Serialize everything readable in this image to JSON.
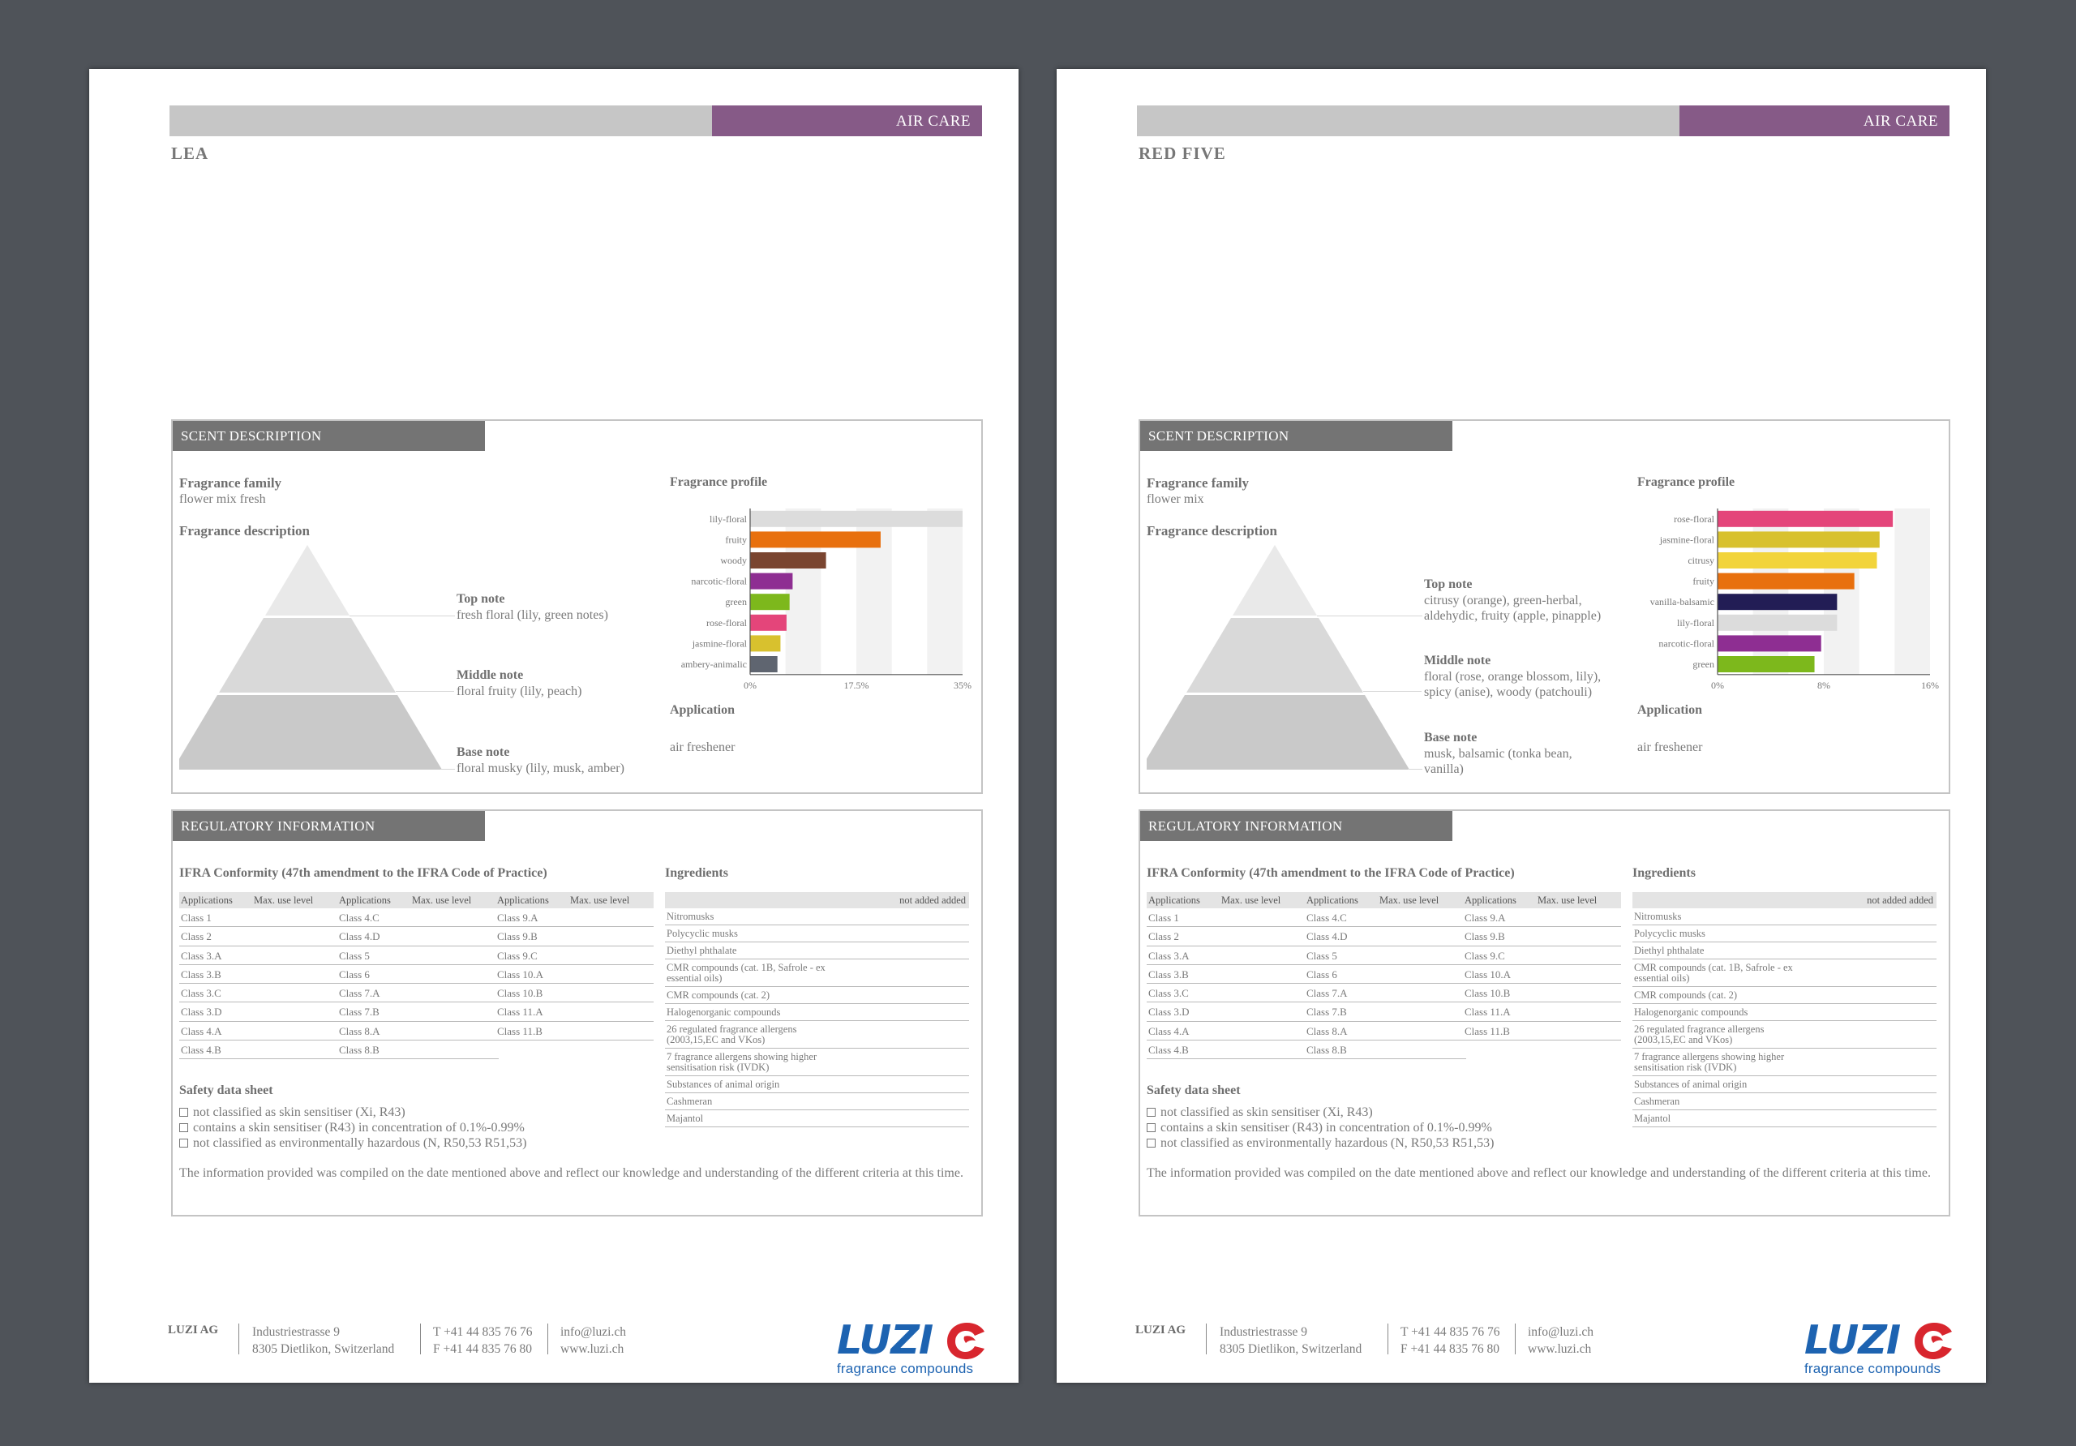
{
  "pages": [
    {
      "category": "AIR CARE",
      "name": "LEA",
      "scent": {
        "header": "SCENT DESCRIPTION",
        "family_label": "Fragrance family",
        "family": "flower mix fresh",
        "description_label": "Fragrance description",
        "top_label": "Top note",
        "top": "fresh floral (lily, green notes)",
        "middle_label": "Middle note",
        "middle": "floral fruity (lily, peach)",
        "base_label": "Base note",
        "base": "floral musky (lily, musk, amber)",
        "profile_label": "Fragrance profile",
        "application_label": "Application",
        "application": "air freshener"
      },
      "regulatory": {
        "header": "REGULATORY INFORMATION",
        "ifra_title": "IFRA Conformity (47th amendment to the IFRA Code of Practice)",
        "ifra_headers": [
          "Applications",
          "Max. use level",
          "Applications",
          "Max. use level",
          "Applications",
          "Max. use level"
        ],
        "ifra_rows": [
          [
            "Class 1",
            "",
            "Class 4.C",
            "",
            "Class 9.A",
            ""
          ],
          [
            "Class 2",
            "",
            "Class 4.D",
            "",
            "Class 9.B",
            ""
          ],
          [
            "Class 3.A",
            "",
            "Class 5",
            "",
            "Class 9.C",
            ""
          ],
          [
            "Class 3.B",
            "",
            "Class 6",
            "",
            "Class 10.A",
            ""
          ],
          [
            "Class 3.C",
            "",
            "Class 7.A",
            "",
            "Class 10.B",
            ""
          ],
          [
            "Class 3.D",
            "",
            "Class 7.B",
            "",
            "Class 11.A",
            ""
          ],
          [
            "Class 4.A",
            "",
            "Class 8.A",
            "",
            "Class 11.B",
            ""
          ],
          [
            "Class 4.B",
            "",
            "Class 8.B",
            "",
            "",
            ""
          ]
        ],
        "ingredients_title": "Ingredients",
        "ingredients_header": "not  added  added",
        "ingredients": [
          "Nitromusks",
          "Polycyclic musks",
          "Diethyl phthalate",
          "CMR compounds (cat. 1B, Safrole - ex essential oils)",
          "CMR compounds (cat. 2)",
          "Halogenorganic compounds",
          "26 regulated fragrance allergens (2003,15,EC and VKos)",
          "7 fragrance allergens showing higher sensitisation risk (IVDK)",
          "Substances of animal origin",
          "Cashmeran",
          "Majantol"
        ],
        "sds_title": "Safety data sheet",
        "sds_items": [
          "not classified as skin sensitiser (Xi, R43)",
          "contains a skin sensitiser (R43) in concentration of 0.1%-0.99%",
          "not classified as environmentally hazardous (N, R50,53 R51,53)"
        ],
        "note": "The information provided was compiled on the date mentioned above and reflect our knowledge and understanding of the different criteria at this time."
      },
      "footer": {
        "company": "LUZI AG",
        "address1": "Industriestrasse 9",
        "address2": "8305 Dietlikon, Switzerland",
        "phone": "T +41 44 835 76 76",
        "fax": "F +41 44 835 76 80",
        "email": "info@luzi.ch",
        "web": "www.luzi.ch",
        "logo_word": "LUZI",
        "logo_sub": "fragrance compounds"
      }
    },
    {
      "category": "AIR CARE",
      "name": "RED FIVE",
      "scent": {
        "header": "SCENT DESCRIPTION",
        "family_label": "Fragrance family",
        "family": "flower mix",
        "description_label": "Fragrance description",
        "top_label": "Top note",
        "top": "citrusy (orange), green-herbal, aldehydic, fruity (apple, pinapple)",
        "middle_label": "Middle note",
        "middle": "floral (rose, orange blossom, lily), spicy (anise), woody (patchouli)",
        "base_label": "Base note",
        "base": "musk, balsamic (tonka bean, vanilla)",
        "profile_label": "Fragrance profile",
        "application_label": "Application",
        "application": "air freshener"
      },
      "regulatory": {
        "header": "REGULATORY INFORMATION",
        "ifra_title": "IFRA Conformity (47th amendment to the IFRA Code of Practice)",
        "ifra_headers": [
          "Applications",
          "Max. use level",
          "Applications",
          "Max. use level",
          "Applications",
          "Max. use level"
        ],
        "ifra_rows": [
          [
            "Class 1",
            "",
            "Class 4.C",
            "",
            "Class 9.A",
            ""
          ],
          [
            "Class 2",
            "",
            "Class 4.D",
            "",
            "Class 9.B",
            ""
          ],
          [
            "Class 3.A",
            "",
            "Class 5",
            "",
            "Class 9.C",
            ""
          ],
          [
            "Class 3.B",
            "",
            "Class 6",
            "",
            "Class 10.A",
            ""
          ],
          [
            "Class 3.C",
            "",
            "Class 7.A",
            "",
            "Class 10.B",
            ""
          ],
          [
            "Class 3.D",
            "",
            "Class 7.B",
            "",
            "Class 11.A",
            ""
          ],
          [
            "Class 4.A",
            "",
            "Class 8.A",
            "",
            "Class 11.B",
            ""
          ],
          [
            "Class 4.B",
            "",
            "Class 8.B",
            "",
            "",
            ""
          ]
        ],
        "ingredients_title": "Ingredients",
        "ingredients_header": "not  added  added",
        "ingredients": [
          "Nitromusks",
          "Polycyclic musks",
          "Diethyl phthalate",
          "CMR compounds (cat. 1B, Safrole - ex essential oils)",
          "CMR compounds (cat. 2)",
          "Halogenorganic compounds",
          "26 regulated fragrance allergens (2003,15,EC and VKos)",
          "7 fragrance allergens showing higher sensitisation risk (IVDK)",
          "Substances of animal origin",
          "Cashmeran",
          "Majantol"
        ],
        "sds_title": "Safety data sheet",
        "sds_items": [
          "not classified as skin sensitiser (Xi, R43)",
          "contains a skin sensitiser (R43) in concentration of 0.1%-0.99%",
          "not classified as environmentally hazardous (N, R50,53 R51,53)"
        ],
        "note": "The information provided was compiled on the date mentioned above and reflect our knowledge and understanding of the different criteria at this time."
      },
      "footer": {
        "company": "LUZI AG",
        "address1": "Industriestrasse 9",
        "address2": "8305 Dietlikon, Switzerland",
        "phone": "T +41 44 835 76 76",
        "fax": "F +41 44 835 76 80",
        "email": "info@luzi.ch",
        "web": "www.luzi.ch",
        "logo_word": "LUZI",
        "logo_sub": "fragrance compounds"
      }
    }
  ],
  "chart_data": [
    {
      "type": "bar",
      "orientation": "horizontal",
      "categories": [
        "lily-floral",
        "fruity",
        "woody",
        "narcotic-floral",
        "green",
        "rose-floral",
        "jasmine-floral",
        "ambery-animalic"
      ],
      "values": [
        35,
        21.5,
        12.5,
        7,
        6.5,
        6,
        5,
        4.5
      ],
      "colors": [
        "#dcdcdc",
        "#e8700e",
        "#7a4530",
        "#8e2e92",
        "#7db81c",
        "#e4457a",
        "#d8c12e",
        "#5f6570"
      ],
      "tick_labels": [
        "0%",
        "17.5%",
        "35%"
      ],
      "xlim": [
        0,
        35
      ],
      "grid": true
    },
    {
      "type": "bar",
      "orientation": "horizontal",
      "categories": [
        "rose-floral",
        "jasmine-floral",
        "citrusy",
        "fruity",
        "vanilla-balsamic",
        "lily-floral",
        "narcotic-floral",
        "green"
      ],
      "values": [
        13.2,
        12.2,
        12,
        10.3,
        9,
        9,
        7.8,
        7.3
      ],
      "colors": [
        "#e4457a",
        "#d8c12e",
        "#f2d43b",
        "#e8700e",
        "#221d55",
        "#dcdcdc",
        "#8e2e92",
        "#7db81c"
      ],
      "tick_labels": [
        "0%",
        "8%",
        "16%"
      ],
      "xlim": [
        0,
        16
      ],
      "grid": true
    }
  ]
}
